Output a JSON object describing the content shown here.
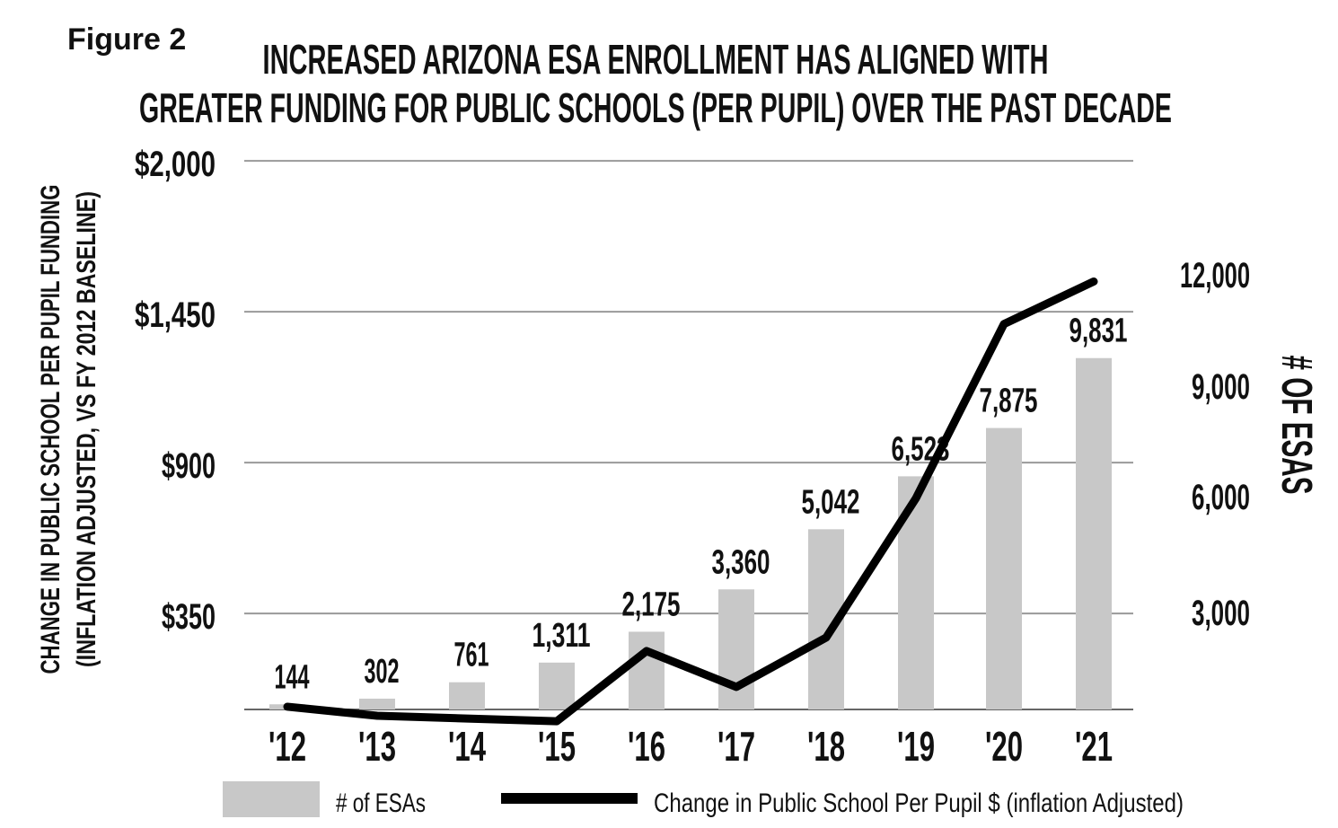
{
  "figure_label": "Figure 2",
  "chart_data": {
    "type": "bar+line",
    "title": [
      "INCREASED ARIZONA ESA ENROLLMENT HAS ALIGNED WITH",
      "GREATER FUNDING FOR PUBLIC SCHOOLS (PER PUPIL) OVER THE PAST DECADE"
    ],
    "categories": [
      "'12",
      "'13",
      "'14",
      "'15",
      "'16",
      "'17",
      "'18",
      "'19",
      "'20",
      "'21"
    ],
    "ylabel_left": [
      "CHANGE IN PUBLIC SCHOOL PER PUPIL FUNDING",
      "(INFLATION ADJUSTED, VS FY 2012 BASELINE)"
    ],
    "ylabel_right": "# OF ESAS",
    "yticks_left": [
      "$2,000",
      "$1,450",
      "$900",
      "$350"
    ],
    "yticks_left_values": [
      2000,
      1450,
      900,
      350
    ],
    "yticks_right": [
      "12,000",
      "9,000",
      "6,000",
      "3,000"
    ],
    "yticks_right_values": [
      12000,
      9000,
      6000,
      3000
    ],
    "ylim_left": [
      0,
      2000
    ],
    "ylim_right": [
      0,
      12000
    ],
    "grid": "horizontal",
    "legend_position": "bottom",
    "series": [
      {
        "name": "# of ESAs",
        "type": "bar",
        "axis": "right",
        "color": "#c8c8c8",
        "values": [
          144,
          302,
          761,
          1311,
          2175,
          3360,
          5042,
          6523,
          7875,
          9831
        ],
        "labels": [
          "144",
          "302",
          "761",
          "1,311",
          "2,175",
          "3,360",
          "5,042",
          "6,523",
          "7,875",
          "9,831"
        ]
      },
      {
        "name": "Change in Public School Per Pupil $ (inflation Adjusted)",
        "type": "line",
        "axis": "left",
        "color": "#000000",
        "values": [
          10,
          -23,
          -33,
          -43,
          213,
          82,
          262,
          770,
          1405,
          1560
        ]
      }
    ]
  }
}
